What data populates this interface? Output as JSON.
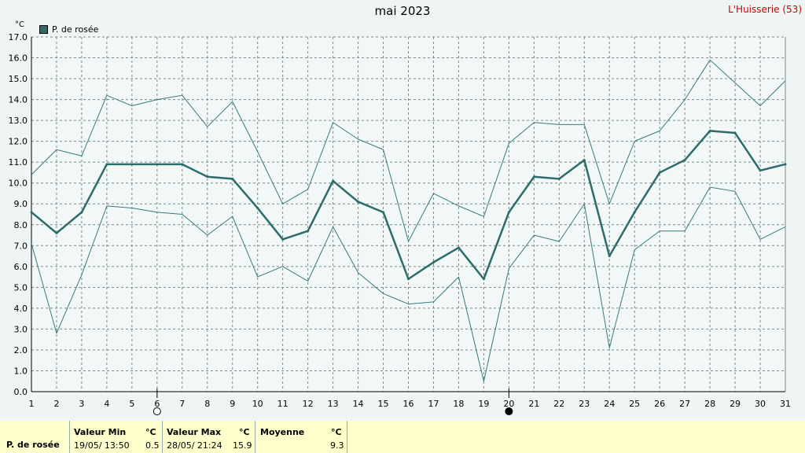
{
  "header": {
    "title": "mai 2023",
    "station": "L'Huisserie (53)"
  },
  "colors": {
    "series": "#2f6b6b",
    "band": "#3a7a7a",
    "grid": "#7a8a8a",
    "background": "#eef5f4",
    "stats_bg": "#ffffcc",
    "station": "#cc0000"
  },
  "chart_data": {
    "type": "line",
    "x": [
      1,
      2,
      3,
      4,
      5,
      6,
      7,
      8,
      9,
      10,
      11,
      12,
      13,
      14,
      15,
      16,
      17,
      18,
      19,
      20,
      21,
      22,
      23,
      24,
      25,
      26,
      27,
      28,
      29,
      30,
      31
    ],
    "ylim": [
      0,
      17
    ],
    "yticks": [
      "0.0",
      "1.0",
      "2.0",
      "3.0",
      "4.0",
      "5.0",
      "6.0",
      "7.0",
      "8.0",
      "9.0",
      "10.0",
      "11.0",
      "12.0",
      "13.0",
      "14.0",
      "15.0",
      "16.0",
      "17.0"
    ],
    "ylabel": "°C",
    "grid": true,
    "legend_position": "top-left",
    "series": [
      {
        "name": "P. de rosée",
        "role": "mean",
        "values": [
          8.6,
          7.6,
          8.6,
          10.9,
          10.9,
          10.9,
          10.9,
          10.3,
          10.2,
          8.8,
          7.3,
          7.7,
          10.1,
          9.1,
          8.6,
          5.4,
          6.2,
          6.9,
          5.4,
          8.6,
          10.3,
          10.2,
          11.1,
          6.5,
          8.6,
          10.5,
          11.1,
          12.5,
          12.4,
          10.6,
          10.9
        ]
      },
      {
        "role": "max",
        "values": [
          10.4,
          11.6,
          11.3,
          14.2,
          13.7,
          14.0,
          14.2,
          12.7,
          13.9,
          11.5,
          9.0,
          9.7,
          12.9,
          12.1,
          11.6,
          7.2,
          9.5,
          8.9,
          8.4,
          11.9,
          12.9,
          12.8,
          12.8,
          9.0,
          12.0,
          12.5,
          14.0,
          15.9,
          14.8,
          13.7,
          14.9
        ]
      },
      {
        "role": "min",
        "values": [
          7.1,
          2.8,
          5.6,
          8.9,
          8.8,
          8.6,
          8.5,
          7.5,
          8.4,
          5.5,
          6.0,
          5.3,
          7.9,
          5.7,
          4.7,
          4.2,
          4.3,
          5.5,
          0.5,
          5.9,
          7.5,
          7.2,
          9.0,
          2.1,
          6.8,
          7.7,
          7.7,
          9.8,
          9.6,
          7.3,
          7.9
        ]
      }
    ],
    "moon_phases": [
      {
        "day": 6,
        "phase": "full"
      },
      {
        "day": 20,
        "phase": "new"
      }
    ]
  },
  "stats": {
    "series_label": "P. de rosée",
    "min_header": "Valeur Min",
    "min_unit": "°C",
    "min_date": "19/05/  13:50",
    "min_value": "0.5",
    "max_header": "Valeur Max",
    "max_unit": "°C",
    "max_date": "28/05/  21:24",
    "max_value": "15.9",
    "avg_header": "Moyenne",
    "avg_unit": "°C",
    "avg_value": "9.3"
  }
}
